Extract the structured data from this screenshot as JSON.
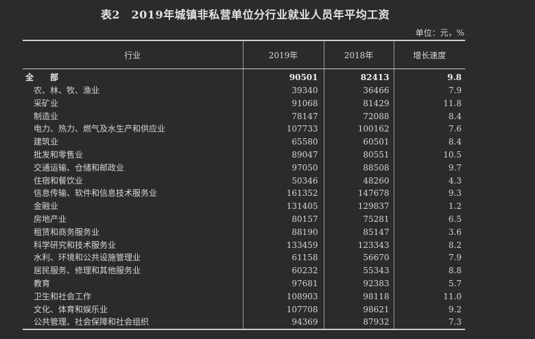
{
  "title": "表2　2019年城镇非私营单位分行业就业人员年平均工资",
  "unit": "单位：元，%",
  "headers": [
    "行业",
    "2019年",
    "2018年",
    "增长速度"
  ],
  "rows": [
    [
      "全　部",
      "90501",
      "82413",
      "9.8"
    ],
    [
      "农、林、牧、渔业",
      "39340",
      "36466",
      "7.9"
    ],
    [
      "采矿业",
      "91068",
      "81429",
      "11.8"
    ],
    [
      "制造业",
      "78147",
      "72088",
      "8.4"
    ],
    [
      "电力、热力、燃气及水生产和供应业",
      "107733",
      "100162",
      "7.6"
    ],
    [
      "建筑业",
      "65580",
      "60501",
      "8.4"
    ],
    [
      "批发和零售业",
      "89047",
      "80551",
      "10.5"
    ],
    [
      "交通运输、仓储和邮政业",
      "97050",
      "88508",
      "9.7"
    ],
    [
      "住宿和餐饮业",
      "50346",
      "48260",
      "4.3"
    ],
    [
      "信息传输、软件和信息技术服务业",
      "161352",
      "147678",
      "9.3"
    ],
    [
      "金融业",
      "131405",
      "129837",
      "1.2"
    ],
    [
      "房地产业",
      "80157",
      "75281",
      "6.5"
    ],
    [
      "租赁和商务服务业",
      "88190",
      "85147",
      "3.6"
    ],
    [
      "科学研究和技术服务业",
      "133459",
      "123343",
      "8.2"
    ],
    [
      "水利、环境和公共设施管理业",
      "61158",
      "56670",
      "7.9"
    ],
    [
      "居民服务、修理和其他服务业",
      "60232",
      "55343",
      "8.8"
    ],
    [
      "教育",
      "97681",
      "92383",
      "5.7"
    ],
    [
      "卫生和社会工作",
      "108903",
      "98118",
      "11.0"
    ],
    [
      "文化、体育和娱乐业",
      "107708",
      "98621",
      "9.2"
    ],
    [
      "公共管理、社会保障和社会组织",
      "94369",
      "87932",
      "7.3"
    ]
  ]
}
